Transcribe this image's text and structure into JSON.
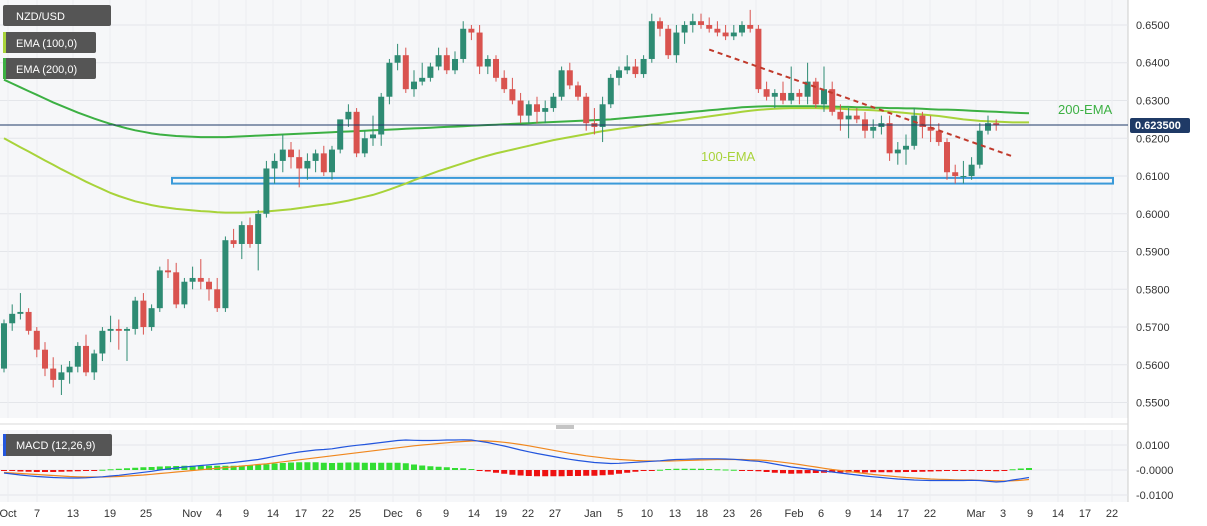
{
  "legend": {
    "symbol": "NZD/USD",
    "ema100": "EMA (100,0)",
    "ema200": "EMA (200,0)",
    "macd": "MACD (12,26,9)"
  },
  "annotations": {
    "ema200_label": "200-EMA",
    "ema100_label": "100-EMA"
  },
  "colors": {
    "up": "#2e8b73",
    "down": "#d9534f",
    "ema100": "#a8d33a",
    "ema200": "#3cb043",
    "macd_line": "#2255dd",
    "signal_line": "#f0871e",
    "hist_pos": "#33dd33",
    "hist_neg": "#ee1111",
    "support_zone": "#3a9ad9",
    "trendline": "#c0392b",
    "price_line": "#1f3a66",
    "panel_bg": "#f6f7f9",
    "chip_bg": "#555555",
    "current_price_bg": "#1f3a66"
  },
  "chart_data": {
    "type": "candlestick",
    "symbol": "NZD/USD",
    "current_price": "0.623500",
    "y_ticks": [
      "0.6500",
      "0.6400",
      "0.6300",
      "0.6200",
      "0.6100",
      "0.6000",
      "0.5900",
      "0.5800",
      "0.5700",
      "0.5600",
      "0.5500"
    ],
    "ylim": [
      0.5475,
      0.6545
    ],
    "macd_ticks": [
      "0.0100",
      "-0.0000",
      "-0.0100"
    ],
    "macd_ylim": [
      -0.012,
      0.012
    ],
    "x_ticks": [
      "Oct",
      "7",
      "13",
      "19",
      "25",
      "Nov",
      "4",
      "9",
      "14",
      "17",
      "22",
      "25",
      "Dec",
      "6",
      "9",
      "14",
      "19",
      "22",
      "27",
      "Jan",
      "5",
      "10",
      "13",
      "18",
      "23",
      "26",
      "Feb",
      "6",
      "9",
      "14",
      "17",
      "22",
      "Mar",
      "3",
      "9",
      "14",
      "17",
      "22"
    ],
    "candles": [
      [
        0.559,
        0.572,
        0.558,
        0.571
      ],
      [
        0.571,
        0.576,
        0.569,
        0.5735
      ],
      [
        0.5735,
        0.579,
        0.572,
        0.574
      ],
      [
        0.574,
        0.575,
        0.568,
        0.569
      ],
      [
        0.569,
        0.57,
        0.562,
        0.564
      ],
      [
        0.564,
        0.566,
        0.557,
        0.559
      ],
      [
        0.559,
        0.562,
        0.554,
        0.556
      ],
      [
        0.556,
        0.56,
        0.552,
        0.558
      ],
      [
        0.558,
        0.561,
        0.555,
        0.5595
      ],
      [
        0.5595,
        0.566,
        0.558,
        0.565
      ],
      [
        0.565,
        0.568,
        0.557,
        0.558
      ],
      [
        0.558,
        0.564,
        0.556,
        0.563
      ],
      [
        0.563,
        0.57,
        0.561,
        0.569
      ],
      [
        0.569,
        0.573,
        0.566,
        0.5695
      ],
      [
        0.5695,
        0.572,
        0.564,
        0.569
      ],
      [
        0.569,
        0.57,
        0.561,
        0.5695
      ],
      [
        0.5695,
        0.578,
        0.568,
        0.577
      ],
      [
        0.577,
        0.579,
        0.568,
        0.57
      ],
      [
        0.57,
        0.576,
        0.569,
        0.575
      ],
      [
        0.575,
        0.586,
        0.574,
        0.585
      ],
      [
        0.585,
        0.588,
        0.583,
        0.5845
      ],
      [
        0.5845,
        0.587,
        0.575,
        0.576
      ],
      [
        0.576,
        0.583,
        0.575,
        0.582
      ],
      [
        0.582,
        0.586,
        0.58,
        0.583
      ],
      [
        0.583,
        0.588,
        0.58,
        0.582
      ],
      [
        0.582,
        0.583,
        0.577,
        0.58
      ],
      [
        0.58,
        0.583,
        0.574,
        0.575
      ],
      [
        0.575,
        0.594,
        0.574,
        0.593
      ],
      [
        0.593,
        0.596,
        0.591,
        0.592
      ],
      [
        0.592,
        0.598,
        0.588,
        0.597
      ],
      [
        0.597,
        0.599,
        0.591,
        0.592
      ],
      [
        0.592,
        0.601,
        0.585,
        0.6
      ],
      [
        0.6,
        0.614,
        0.599,
        0.612
      ],
      [
        0.612,
        0.616,
        0.608,
        0.614
      ],
      [
        0.614,
        0.621,
        0.611,
        0.617
      ],
      [
        0.617,
        0.619,
        0.612,
        0.615
      ],
      [
        0.615,
        0.617,
        0.607,
        0.612
      ],
      [
        0.612,
        0.616,
        0.609,
        0.614
      ],
      [
        0.614,
        0.617,
        0.611,
        0.616
      ],
      [
        0.616,
        0.618,
        0.61,
        0.611
      ],
      [
        0.611,
        0.618,
        0.609,
        0.617
      ],
      [
        0.617,
        0.624,
        0.616,
        0.625
      ],
      [
        0.625,
        0.629,
        0.623,
        0.627
      ],
      [
        0.627,
        0.628,
        0.615,
        0.616
      ],
      [
        0.616,
        0.622,
        0.615,
        0.62
      ],
      [
        0.62,
        0.626,
        0.618,
        0.621
      ],
      [
        0.621,
        0.632,
        0.618,
        0.631
      ],
      [
        0.631,
        0.641,
        0.629,
        0.64
      ],
      [
        0.64,
        0.645,
        0.638,
        0.642
      ],
      [
        0.642,
        0.644,
        0.632,
        0.633
      ],
      [
        0.633,
        0.638,
        0.631,
        0.635
      ],
      [
        0.635,
        0.64,
        0.634,
        0.636
      ],
      [
        0.636,
        0.64,
        0.635,
        0.639
      ],
      [
        0.639,
        0.644,
        0.638,
        0.642
      ],
      [
        0.642,
        0.644,
        0.637,
        0.638
      ],
      [
        0.638,
        0.643,
        0.637,
        0.641
      ],
      [
        0.641,
        0.651,
        0.64,
        0.649
      ],
      [
        0.649,
        0.65,
        0.646,
        0.648
      ],
      [
        0.648,
        0.65,
        0.637,
        0.639
      ],
      [
        0.639,
        0.642,
        0.637,
        0.641
      ],
      [
        0.641,
        0.642,
        0.635,
        0.636
      ],
      [
        0.636,
        0.638,
        0.632,
        0.633
      ],
      [
        0.633,
        0.636,
        0.629,
        0.63
      ],
      [
        0.63,
        0.632,
        0.624,
        0.626
      ],
      [
        0.626,
        0.63,
        0.624,
        0.629
      ],
      [
        0.629,
        0.631,
        0.624,
        0.627
      ],
      [
        0.627,
        0.63,
        0.624,
        0.628
      ],
      [
        0.628,
        0.632,
        0.627,
        0.631
      ],
      [
        0.631,
        0.639,
        0.63,
        0.638
      ],
      [
        0.638,
        0.64,
        0.633,
        0.634
      ],
      [
        0.634,
        0.635,
        0.63,
        0.631
      ],
      [
        0.631,
        0.632,
        0.622,
        0.624
      ],
      [
        0.624,
        0.628,
        0.621,
        0.623
      ],
      [
        0.623,
        0.631,
        0.619,
        0.629
      ],
      [
        0.629,
        0.637,
        0.628,
        0.636
      ],
      [
        0.636,
        0.639,
        0.634,
        0.638
      ],
      [
        0.638,
        0.642,
        0.637,
        0.639
      ],
      [
        0.639,
        0.641,
        0.636,
        0.637
      ],
      [
        0.637,
        0.642,
        0.636,
        0.641
      ],
      [
        0.641,
        0.653,
        0.64,
        0.651
      ],
      [
        0.651,
        0.652,
        0.647,
        0.649
      ],
      [
        0.649,
        0.65,
        0.641,
        0.642
      ],
      [
        0.642,
        0.65,
        0.64,
        0.648
      ],
      [
        0.648,
        0.651,
        0.645,
        0.65
      ],
      [
        0.65,
        0.653,
        0.648,
        0.651
      ],
      [
        0.651,
        0.653,
        0.649,
        0.65
      ],
      [
        0.65,
        0.652,
        0.648,
        0.649
      ],
      [
        0.649,
        0.651,
        0.647,
        0.648
      ],
      [
        0.648,
        0.65,
        0.646,
        0.647
      ],
      [
        0.647,
        0.65,
        0.646,
        0.648
      ],
      [
        0.648,
        0.651,
        0.647,
        0.65
      ],
      [
        0.65,
        0.654,
        0.648,
        0.649
      ],
      [
        0.649,
        0.65,
        0.632,
        0.633
      ],
      [
        0.633,
        0.635,
        0.63,
        0.631
      ],
      [
        0.631,
        0.633,
        0.628,
        0.632
      ],
      [
        0.632,
        0.635,
        0.629,
        0.63
      ],
      [
        0.63,
        0.639,
        0.629,
        0.632
      ],
      [
        0.632,
        0.633,
        0.629,
        0.631
      ],
      [
        0.631,
        0.64,
        0.629,
        0.635
      ],
      [
        0.635,
        0.636,
        0.628,
        0.629
      ],
      [
        0.629,
        0.639,
        0.627,
        0.633
      ],
      [
        0.633,
        0.635,
        0.626,
        0.627
      ],
      [
        0.627,
        0.629,
        0.622,
        0.625
      ],
      [
        0.625,
        0.628,
        0.62,
        0.626
      ],
      [
        0.626,
        0.628,
        0.624,
        0.625
      ],
      [
        0.625,
        0.627,
        0.62,
        0.622
      ],
      [
        0.622,
        0.625,
        0.62,
        0.623
      ],
      [
        0.623,
        0.626,
        0.621,
        0.624
      ],
      [
        0.624,
        0.626,
        0.614,
        0.616
      ],
      [
        0.616,
        0.619,
        0.613,
        0.617
      ],
      [
        0.617,
        0.621,
        0.613,
        0.618
      ],
      [
        0.618,
        0.628,
        0.617,
        0.626
      ],
      [
        0.626,
        0.627,
        0.62,
        0.623
      ],
      [
        0.623,
        0.626,
        0.619,
        0.622
      ],
      [
        0.622,
        0.624,
        0.618,
        0.619
      ],
      [
        0.619,
        0.62,
        0.609,
        0.611
      ],
      [
        0.611,
        0.613,
        0.608,
        0.61
      ],
      [
        0.61,
        0.614,
        0.608,
        0.61
      ],
      [
        0.61,
        0.615,
        0.609,
        0.613
      ],
      [
        0.613,
        0.624,
        0.612,
        0.622
      ],
      [
        0.622,
        0.626,
        0.621,
        0.624
      ],
      [
        0.624,
        0.625,
        0.622,
        0.6235
      ]
    ],
    "ema100": [
      0.62,
      0.6188,
      0.6176,
      0.6165,
      0.6153,
      0.6141,
      0.613,
      0.6118,
      0.6107,
      0.6096,
      0.6085,
      0.6075,
      0.6065,
      0.6055,
      0.6047,
      0.604,
      0.6033,
      0.6028,
      0.6023,
      0.6019,
      0.6016,
      0.6013,
      0.6011,
      0.6009,
      0.6007,
      0.6006,
      0.6004,
      0.6003,
      0.6003,
      0.6003,
      0.6004,
      0.6005,
      0.6006,
      0.6008,
      0.601,
      0.6012,
      0.6015,
      0.6018,
      0.6021,
      0.6024,
      0.6027,
      0.6031,
      0.6035,
      0.604,
      0.6045,
      0.605,
      0.6057,
      0.6064,
      0.6072,
      0.608,
      0.6089,
      0.6097,
      0.6105,
      0.6113,
      0.612,
      0.6127,
      0.6134,
      0.6141,
      0.6148,
      0.6154,
      0.616,
      0.6165,
      0.617,
      0.6175,
      0.618,
      0.6185,
      0.619,
      0.6195,
      0.6199,
      0.6203,
      0.6207,
      0.6211,
      0.6215,
      0.6219,
      0.6222,
      0.6225,
      0.6228,
      0.6231,
      0.6234,
      0.6237,
      0.624,
      0.6243,
      0.6246,
      0.6249,
      0.6252,
      0.6255,
      0.6258,
      0.6261,
      0.6264,
      0.6267,
      0.627,
      0.6273,
      0.6275,
      0.6277,
      0.6278,
      0.6279,
      0.628,
      0.628,
      0.628,
      0.628,
      0.6279,
      0.6279,
      0.6278,
      0.6277,
      0.6276,
      0.6275,
      0.6274,
      0.6273,
      0.6271,
      0.6269,
      0.6267,
      0.6265,
      0.6263,
      0.6261,
      0.6259,
      0.6256,
      0.6253,
      0.625,
      0.6248,
      0.6246,
      0.6245,
      0.6244,
      0.6243,
      0.6242,
      0.6242,
      0.6242
    ],
    "ema200": [
      0.6355,
      0.6345,
      0.6335,
      0.6325,
      0.6315,
      0.6305,
      0.6295,
      0.6286,
      0.6277,
      0.6268,
      0.626,
      0.6252,
      0.6245,
      0.6238,
      0.6232,
      0.6226,
      0.6221,
      0.6217,
      0.6213,
      0.621,
      0.6208,
      0.6206,
      0.6205,
      0.6204,
      0.6203,
      0.6203,
      0.6203,
      0.6203,
      0.6204,
      0.6205,
      0.6206,
      0.6207,
      0.6208,
      0.6209,
      0.621,
      0.6211,
      0.6212,
      0.6213,
      0.6214,
      0.6215,
      0.6216,
      0.6217,
      0.6218,
      0.6219,
      0.622,
      0.6221,
      0.6222,
      0.6223,
      0.6224,
      0.6225,
      0.6226,
      0.6227,
      0.6228,
      0.6229,
      0.623,
      0.6231,
      0.6232,
      0.6233,
      0.6234,
      0.6235,
      0.6236,
      0.6237,
      0.6238,
      0.6239,
      0.624,
      0.6241,
      0.6242,
      0.6243,
      0.6244,
      0.6245,
      0.6246,
      0.6247,
      0.6248,
      0.6249,
      0.625,
      0.6252,
      0.6254,
      0.6256,
      0.6258,
      0.626,
      0.6262,
      0.6264,
      0.6266,
      0.6268,
      0.627,
      0.6272,
      0.6274,
      0.6276,
      0.6278,
      0.628,
      0.6282,
      0.6283,
      0.6284,
      0.6285,
      0.6285,
      0.6285,
      0.6285,
      0.6285,
      0.6285,
      0.6285,
      0.6284,
      0.6284,
      0.6283,
      0.6283,
      0.6282,
      0.6282,
      0.6281,
      0.6281,
      0.628,
      0.628,
      0.6279,
      0.6279,
      0.6278,
      0.6277,
      0.6276,
      0.6276,
      0.6275,
      0.6274,
      0.6273,
      0.6272,
      0.6271,
      0.627,
      0.6269,
      0.6268,
      0.6267,
      0.6266
    ],
    "support_zone": [
      0.608,
      0.6095
    ],
    "trendline": {
      "from": [
        86,
        0.6435
      ],
      "to": [
        123,
        0.6152
      ]
    },
    "macd": [
      -0.0012,
      -0.0016,
      -0.002,
      -0.0023,
      -0.0026,
      -0.0028,
      -0.003,
      -0.0031,
      -0.0032,
      -0.0032,
      -0.0031,
      -0.0029,
      -0.0027,
      -0.0024,
      -0.0021,
      -0.0017,
      -0.0013,
      -0.0009,
      -0.0005,
      0.0,
      0.0004,
      0.0008,
      0.0012,
      0.0015,
      0.0018,
      0.0021,
      0.0024,
      0.0027,
      0.003,
      0.0034,
      0.0038,
      0.0042,
      0.0048,
      0.0055,
      0.0061,
      0.0067,
      0.0072,
      0.0076,
      0.008,
      0.0082,
      0.0085,
      0.009,
      0.0095,
      0.0099,
      0.0102,
      0.0106,
      0.011,
      0.0114,
      0.0118,
      0.012,
      0.0119,
      0.0118,
      0.0118,
      0.0119,
      0.012,
      0.012,
      0.0121,
      0.012,
      0.0115,
      0.011,
      0.0103,
      0.0096,
      0.0088,
      0.008,
      0.0073,
      0.0066,
      0.006,
      0.0054,
      0.0048,
      0.0043,
      0.0038,
      0.0034,
      0.003,
      0.0028,
      0.0026,
      0.0027,
      0.0029,
      0.0031,
      0.0033,
      0.0035,
      0.0037,
      0.004,
      0.0042,
      0.0043,
      0.0044,
      0.0045,
      0.0045,
      0.0045,
      0.0044,
      0.0043,
      0.004,
      0.0037,
      0.0035,
      0.003,
      0.0024,
      0.0018,
      0.0012,
      0.0008,
      0.0004,
      0.0,
      -0.0004,
      -0.0008,
      -0.0012,
      -0.0016,
      -0.002,
      -0.0024,
      -0.0027,
      -0.003,
      -0.0033,
      -0.0036,
      -0.0038,
      -0.004,
      -0.0041,
      -0.0042,
      -0.0042,
      -0.0042,
      -0.0042,
      -0.0042,
      -0.0041,
      -0.0042,
      -0.0045,
      -0.0048,
      -0.0046,
      -0.004,
      -0.0035,
      -0.003
    ],
    "signal": [
      -0.001,
      -0.0012,
      -0.0014,
      -0.0016,
      -0.0018,
      -0.002,
      -0.0022,
      -0.0024,
      -0.0026,
      -0.0027,
      -0.0028,
      -0.0028,
      -0.0028,
      -0.0027,
      -0.0026,
      -0.0024,
      -0.0022,
      -0.002,
      -0.0017,
      -0.0014,
      -0.0011,
      -0.0008,
      -0.0005,
      -0.0002,
      0.0001,
      0.0004,
      0.0007,
      0.001,
      0.0013,
      0.0016,
      0.0019,
      0.0022,
      0.0025,
      0.0029,
      0.0033,
      0.0037,
      0.0041,
      0.0045,
      0.0049,
      0.0053,
      0.0057,
      0.0061,
      0.0065,
      0.0069,
      0.0073,
      0.0077,
      0.0081,
      0.0085,
      0.0089,
      0.0093,
      0.0097,
      0.01,
      0.0103,
      0.0106,
      0.0109,
      0.0112,
      0.0114,
      0.0116,
      0.0117,
      0.0116,
      0.0114,
      0.0111,
      0.0107,
      0.0102,
      0.0097,
      0.0091,
      0.0085,
      0.0079,
      0.0073,
      0.0067,
      0.0062,
      0.0057,
      0.0053,
      0.0049,
      0.0045,
      0.0042,
      0.004,
      0.0038,
      0.0037,
      0.0036,
      0.0036,
      0.0036,
      0.0037,
      0.0038,
      0.0039,
      0.004,
      0.0041,
      0.0042,
      0.0042,
      0.0042,
      0.0042,
      0.0041,
      0.004,
      0.0038,
      0.0035,
      0.0031,
      0.0027,
      0.0022,
      0.0017,
      0.0012,
      0.0007,
      0.0002,
      -0.0002,
      -0.0006,
      -0.001,
      -0.0014,
      -0.0018,
      -0.0021,
      -0.0024,
      -0.0027,
      -0.003,
      -0.0032,
      -0.0034,
      -0.0036,
      -0.0037,
      -0.0038,
      -0.0039,
      -0.004,
      -0.004,
      -0.0041,
      -0.0042,
      -0.0043,
      -0.0044,
      -0.0043,
      -0.0041,
      -0.0038
    ]
  }
}
